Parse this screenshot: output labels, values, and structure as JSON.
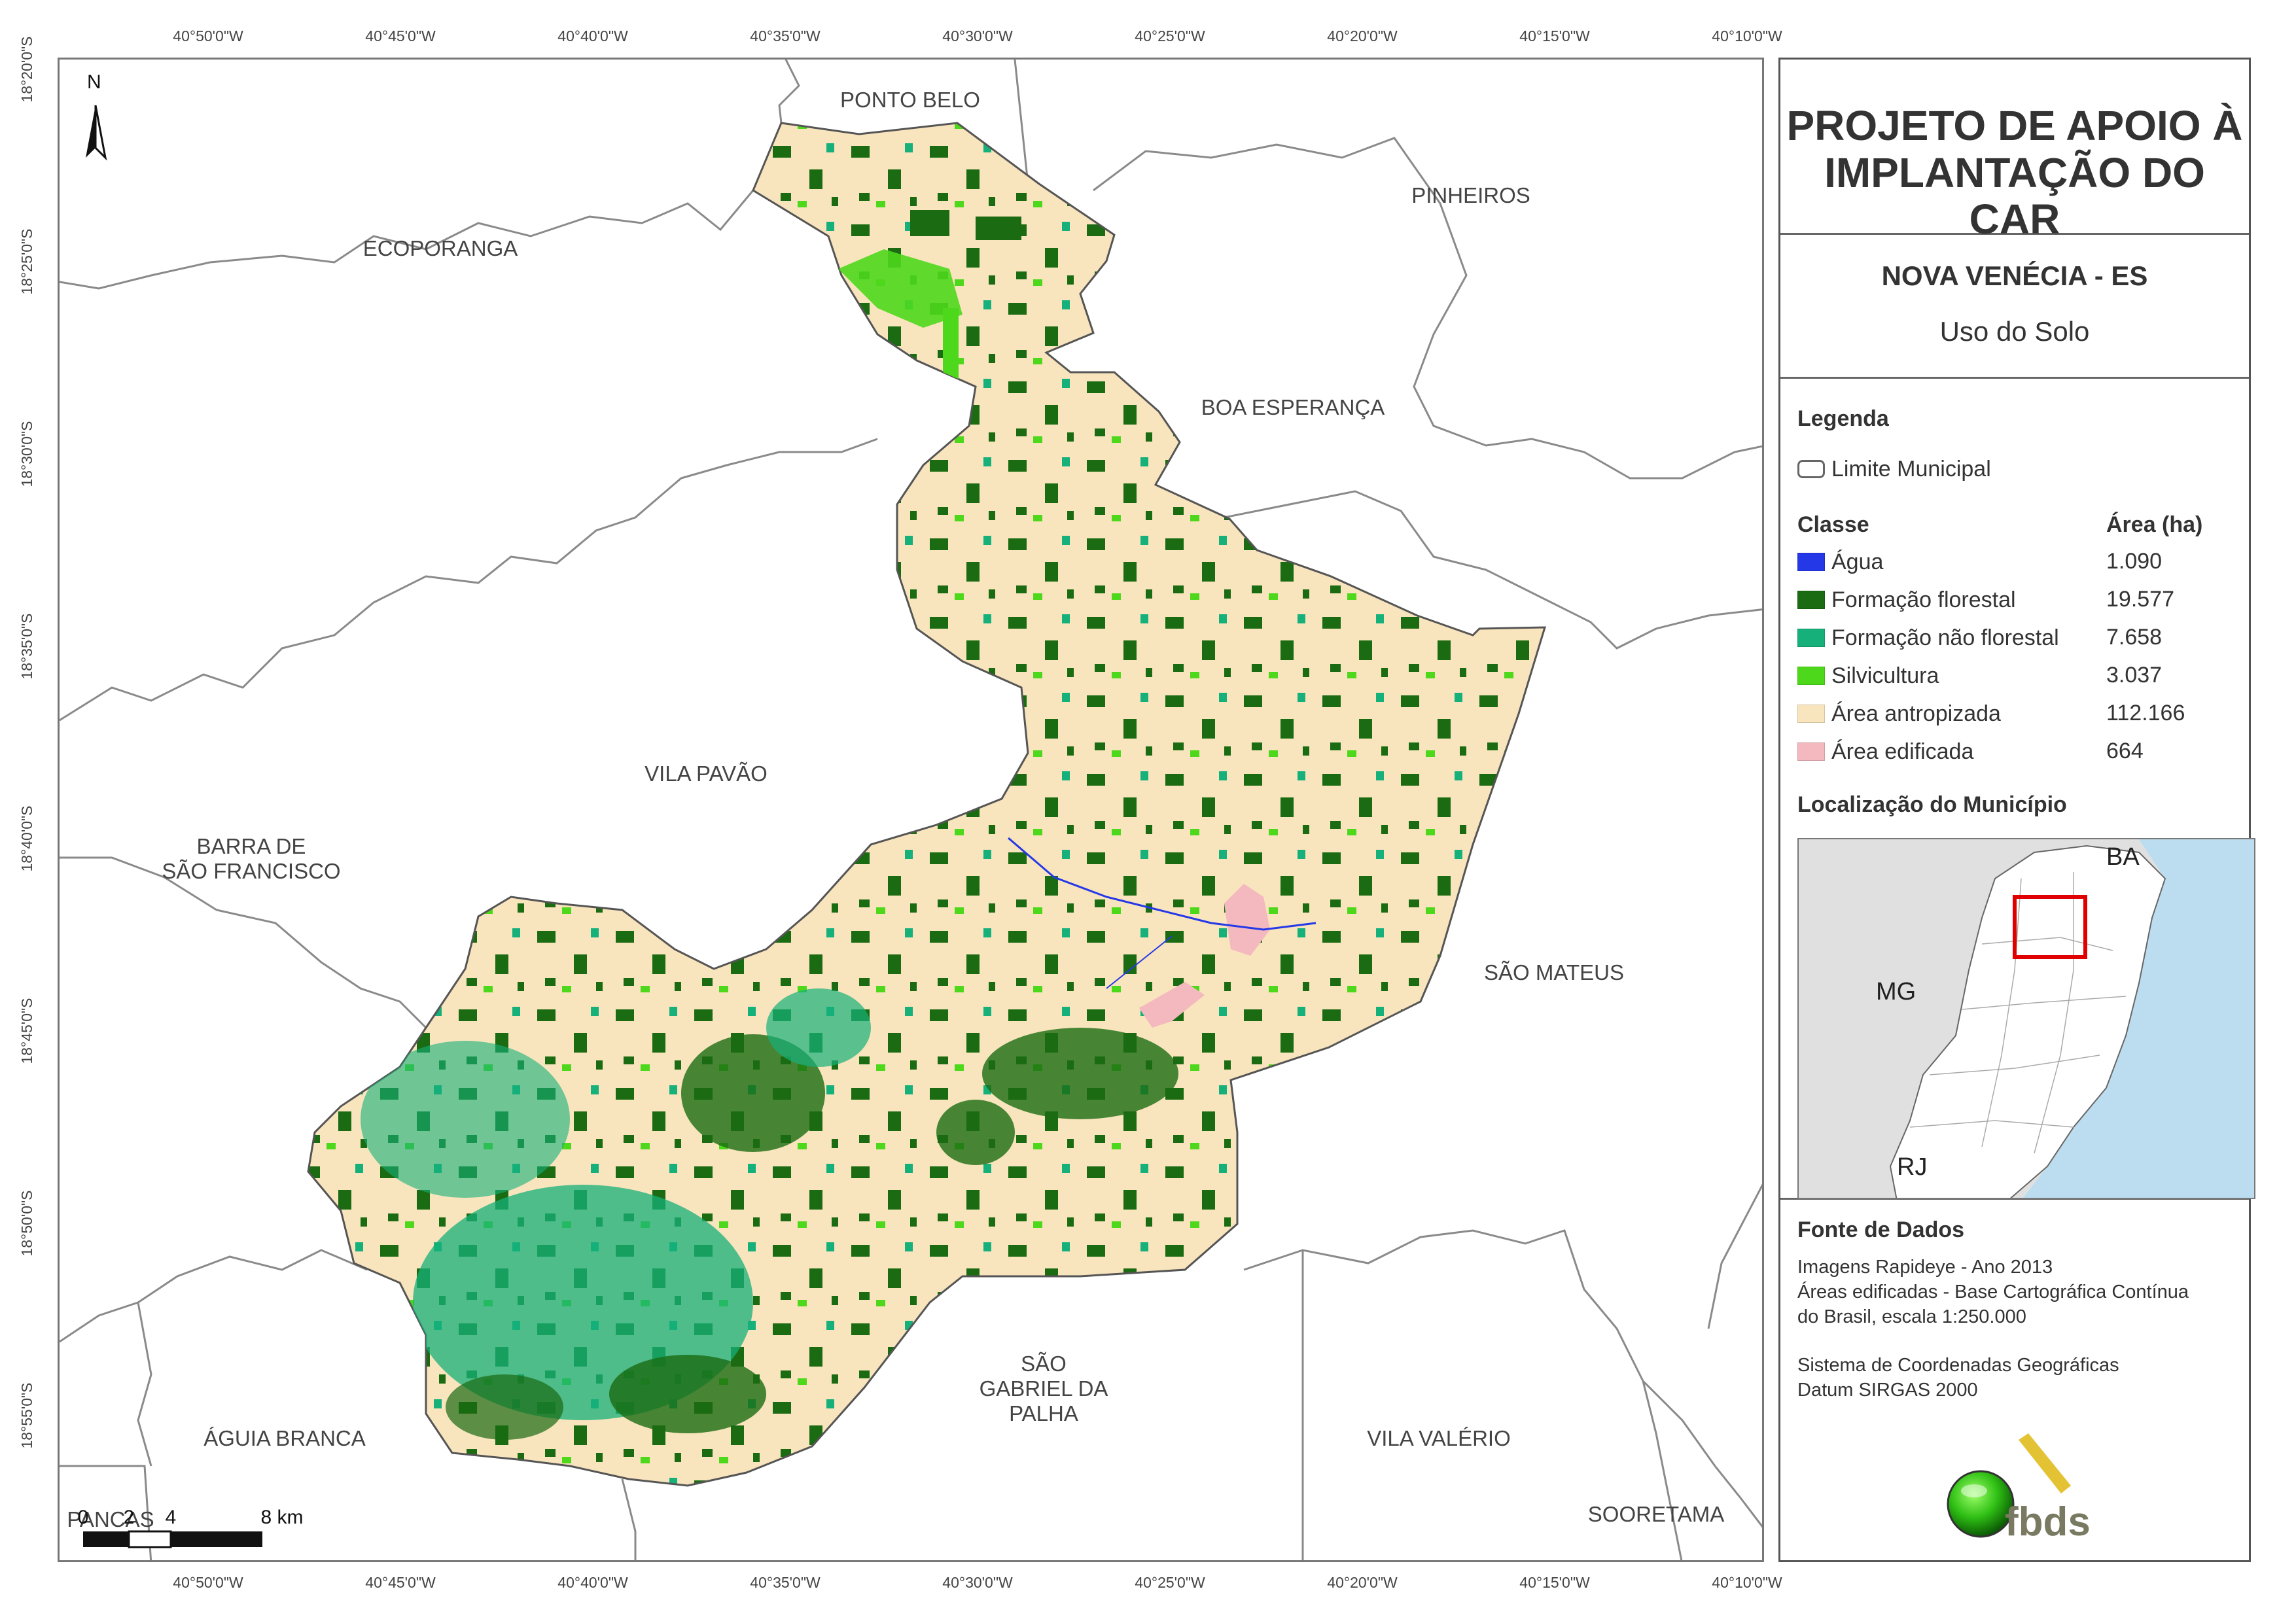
{
  "coordinates": {
    "top_longitudes": [
      "40°50'0\"W",
      "40°45'0\"W",
      "40°40'0\"W",
      "40°35'0\"W",
      "40°30'0\"W",
      "40°25'0\"W",
      "40°20'0\"W",
      "40°15'0\"W",
      "40°10'0\"W"
    ],
    "bottom_longitudes": [
      "40°50'0\"W",
      "40°45'0\"W",
      "40°40'0\"W",
      "40°35'0\"W",
      "40°30'0\"W",
      "40°25'0\"W",
      "40°20'0\"W",
      "40°15'0\"W",
      "40°10'0\"W"
    ],
    "left_latitudes": [
      "18°20'0\"S",
      "18°25'0\"S",
      "18°30'0\"S",
      "18°35'0\"S",
      "18°40'0\"S",
      "18°45'0\"S",
      "18°50'0\"S",
      "18°55'0\"S"
    ]
  },
  "map": {
    "north_label": "N",
    "neighbors": [
      "PONTO BELO",
      "PINHEIROS",
      "ECOPORANGA",
      "BOA ESPERANÇA",
      "VILA PAVÃO",
      "BARRA DE\nSÃO FRANCISCO",
      "SÃO MATEUS",
      "SÃO\nGABRIEL DA\nPALHA",
      "ÁGUIA BRANCA",
      "VILA VALÉRIO",
      "SOORETAMA",
      "PANCAS"
    ],
    "scale_labels": [
      "0",
      "2",
      "4",
      "8 km"
    ]
  },
  "panel": {
    "title": "PROJETO DE APOIO À IMPLANTAÇÃO DO CAR",
    "municipality": "NOVA VENÉCIA - ES",
    "theme": "Uso do Solo",
    "legend_heading": "Legenda",
    "boundary_label": "Limite Municipal",
    "class_heading": "Classe",
    "area_heading": "Área (ha)",
    "classes": [
      {
        "label": "Água",
        "area": "1.090",
        "color": "#2438e8"
      },
      {
        "label": "Formação florestal",
        "area": "19.577",
        "color": "#1a6b12"
      },
      {
        "label": "Formação não florestal",
        "area": "7.658",
        "color": "#16b07a"
      },
      {
        "label": "Silvicultura",
        "area": "3.037",
        "color": "#4ed81c"
      },
      {
        "label": "Área antropizada",
        "area": "112.166",
        "color": "#f8e4bd"
      },
      {
        "label": "Área edificada",
        "area": "664",
        "color": "#f4b8bf"
      }
    ],
    "locator_heading": "Localização do Município",
    "locator_labels": {
      "ba": "BA",
      "mg": "MG",
      "rj": "RJ"
    },
    "source_heading": "Fonte de Dados",
    "source_lines": [
      "Imagens Rapideye - Ano 2013",
      "Áreas edificadas - Base Cartográfica Contínua",
      "do Brasil, escala 1:250.000",
      "Sistema de Coordenadas Geográficas",
      "Datum SIRGAS 2000"
    ],
    "logo_text": "fbds"
  }
}
